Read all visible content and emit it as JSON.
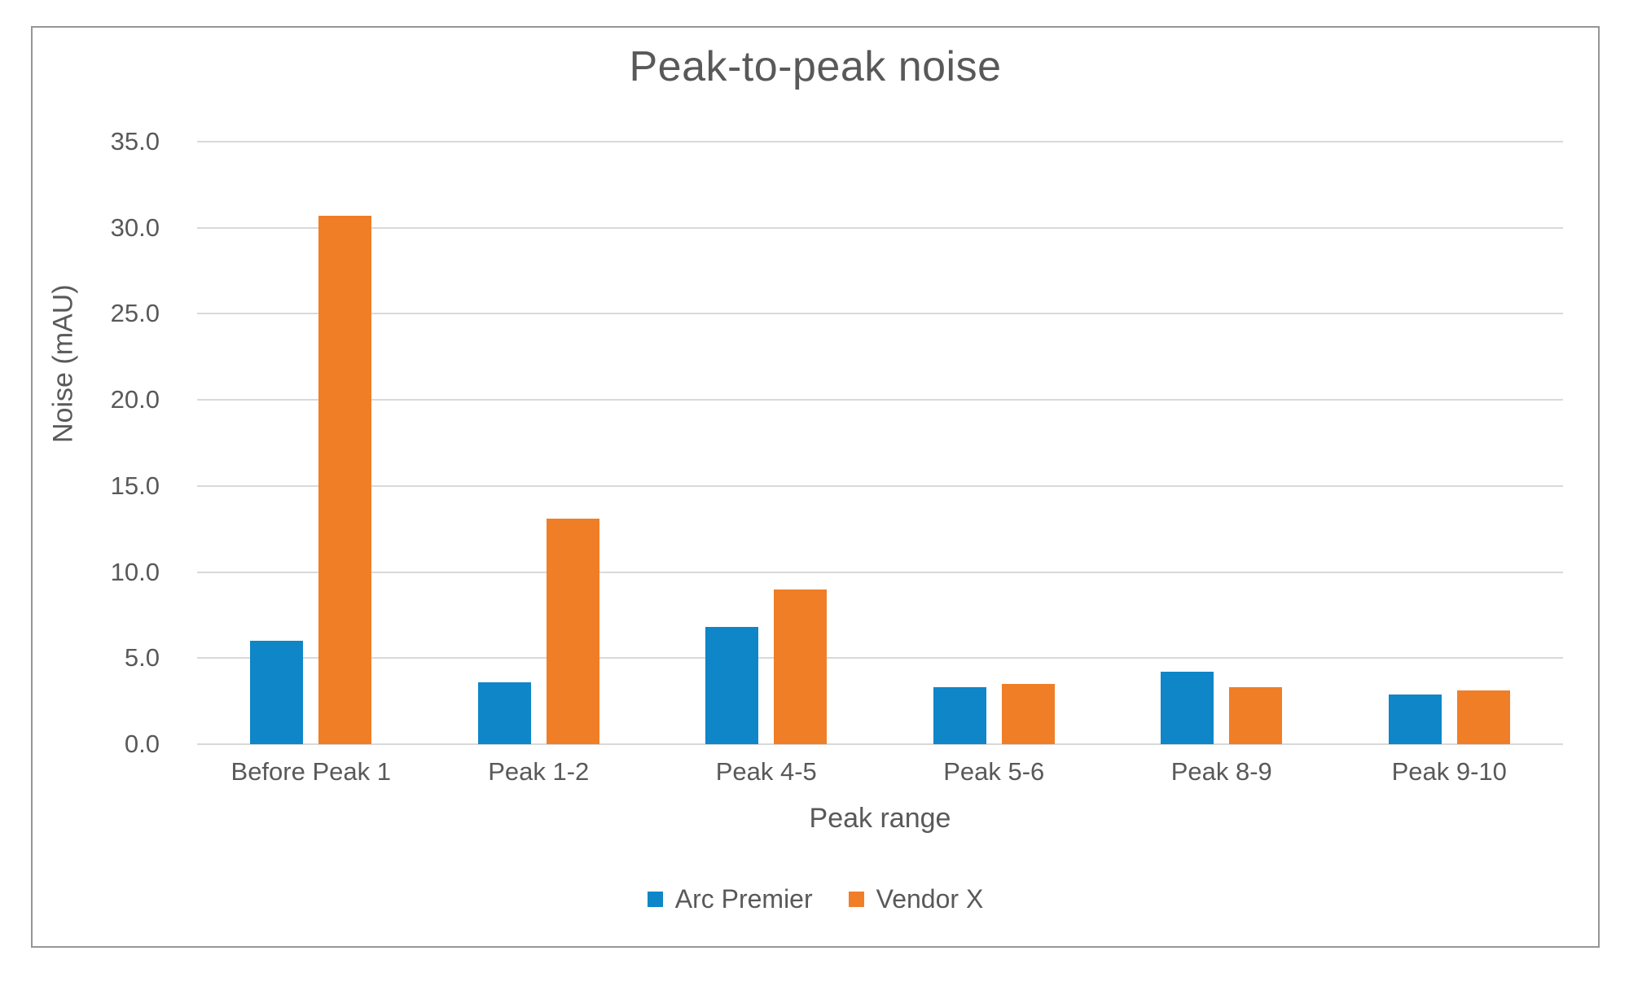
{
  "chart_data": {
    "type": "bar",
    "title": "Peak-to-peak noise",
    "xlabel": "Peak range",
    "ylabel": "Noise (mAU)",
    "ylim": [
      0,
      35
    ],
    "ytick_step": 5,
    "ytick_labels_top_to_bottom": [
      "35.0",
      "30.0",
      "25.0",
      "20.0",
      "15.0",
      "10.0",
      "5.0",
      "0.0"
    ],
    "grid": true,
    "legend_position": "bottom",
    "categories": [
      "Before Peak 1",
      "Peak 1-2",
      "Peak 4-5",
      "Peak 5-6",
      "Peak 8-9",
      "Peak 9-10"
    ],
    "series": [
      {
        "name": "Arc Premier",
        "color": "#0E86C8",
        "values": [
          6.0,
          3.6,
          6.8,
          3.3,
          4.2,
          2.9
        ]
      },
      {
        "name": "Vendor X",
        "color": "#F07E27",
        "values": [
          30.7,
          13.1,
          9.0,
          3.5,
          3.3,
          3.1
        ]
      }
    ]
  },
  "colors": {
    "text": "#595959",
    "gridline": "#D9D9D9",
    "frame_border": "#969696",
    "background": "#FFFFFF"
  }
}
